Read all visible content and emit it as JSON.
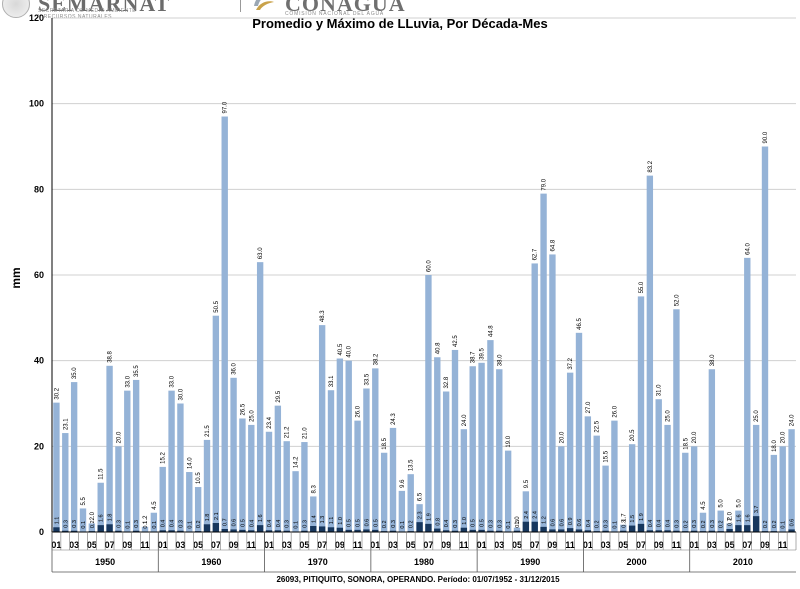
{
  "header": {
    "left_logo_text": "SEMARNAT",
    "left_logo_sub_1": "SECRETARÍA DE MEDIO AMBIENTE",
    "left_logo_sub_2": "Y RECURSOS NATURALES",
    "right_logo_text": "CONAGUA",
    "right_logo_sub": "COMISIÓN NACIONAL DEL AGUA"
  },
  "colors": {
    "max_bar": "#95b3d7",
    "avg_bar": "#17375e",
    "axis": "#000000"
  },
  "chart_data": {
    "type": "bar",
    "title": "Promedio y Máximo de LLuvia, Por Década-Mes",
    "ylabel": "mm",
    "ylim": [
      0,
      120
    ],
    "yticks": [
      0,
      20,
      40,
      60,
      80,
      100,
      120
    ],
    "footer": "26093, PITIQUITO, SONORA, OPERANDO. Período: 01/07/1952 - 31/12/2015",
    "decades": [
      "1950",
      "1960",
      "1970",
      "1980",
      "1990",
      "2000",
      "2010"
    ],
    "month_ticks": [
      "01",
      "03",
      "05",
      "07",
      "09",
      "11"
    ],
    "series": [
      {
        "name": "max",
        "values": [
          [
            30.2,
            23.1,
            35.0,
            5.5,
            2.0,
            11.5,
            38.8,
            20.0,
            33.0,
            35.5,
            1.2,
            4.5
          ],
          [
            15.2,
            33.0,
            30.0,
            14.0,
            10.5,
            21.5,
            50.5,
            97.0,
            36.0,
            26.5,
            25.0,
            63.0
          ],
          [
            23.4,
            29.5,
            21.2,
            14.2,
            21.0,
            8.3,
            48.3,
            33.1,
            40.5,
            40.0,
            26.0,
            33.5
          ],
          [
            38.2,
            18.5,
            24.3,
            9.6,
            13.5,
            6.5,
            60.0,
            40.8,
            32.8,
            42.5,
            24.0,
            38.7
          ],
          [
            39.5,
            44.8,
            38.0,
            19.0,
            1.0,
            9.5,
            62.7,
            79.0,
            64.8,
            20.0,
            37.2,
            46.5
          ],
          [
            27.0,
            22.5,
            15.5,
            26.0,
            1.7,
            20.5,
            55.0,
            83.2,
            31.0,
            25.0,
            52.0,
            18.5
          ],
          [
            20.0,
            4.5,
            38.0,
            5.0,
            2.0,
            5.0,
            64.0,
            25.0,
            90.0,
            18.0,
            20.0,
            24.0
          ]
        ],
        "labels": [
          [
            "30.2",
            "23.1",
            "35.0",
            "5.5",
            "2.0",
            "11.5",
            "38.8",
            "20.0",
            "33.0",
            "35.5",
            "1.2",
            "4.5"
          ],
          [
            "15.2",
            "33.0",
            "30.0",
            "14.0",
            "10.5",
            "21.5",
            "50.5",
            "97.0",
            "36.0",
            "26.5",
            "25.0",
            "63.0"
          ],
          [
            "23.4",
            "29.5",
            "21.2",
            "14.2",
            "21.0",
            "8.3",
            "48.3",
            "33.1",
            "40.5",
            "40.0",
            "26.0",
            "33.5"
          ],
          [
            "38.2",
            "18.5",
            "24.3",
            "9.6",
            "13.5",
            "6.5",
            "60.0",
            "40.8",
            "32.8",
            "42.5",
            "24.0",
            "38.7"
          ],
          [
            "39.5",
            "44.8",
            "38.0",
            "19.0",
            "1.0",
            "9.5",
            "62.7",
            "79.0",
            "64.8",
            "20.0",
            "37.2",
            "46.5"
          ],
          [
            "27.0",
            "22.5",
            "15.5",
            "26.0",
            "1.7",
            "20.5",
            "55.0",
            "83.2",
            "31.0",
            "25.0",
            "52.0",
            "18.5"
          ],
          [
            "20.0",
            "4.5",
            "38.0",
            "5.0",
            "2.0",
            "5.0",
            "64.0",
            "25.0",
            "90.0",
            "18.0",
            "20.0",
            "24.0"
          ]
        ]
      },
      {
        "name": "promedio",
        "values": [
          [
            1.1,
            0.3,
            0.3,
            0.1,
            0.2,
            1.6,
            1.8,
            0.3,
            0.1,
            0.3,
            0.1,
            0.1
          ],
          [
            0.4,
            0.4,
            0.3,
            0.1,
            0.2,
            1.8,
            2.1,
            0.7,
            0.6,
            0.5,
            0.4,
            1.6
          ],
          [
            0.4,
            0.4,
            0.3,
            0.1,
            0.3,
            1.4,
            1.3,
            1.1,
            1.0,
            0.5,
            0.5,
            0.6
          ],
          [
            0.5,
            0.2,
            0.3,
            0.1,
            0.2,
            2.3,
            1.9,
            0.8,
            0.4,
            0.3,
            1.0,
            0.5
          ],
          [
            0.5,
            0.3,
            0.3,
            0.1,
            0.3,
            2.4,
            2.4,
            1.2,
            0.6,
            0.6,
            0.9,
            0.6
          ],
          [
            0.4,
            0.2,
            0.3,
            0.1,
            0.3,
            1.5,
            1.9,
            0.4,
            0.4,
            0.4,
            0.3,
            0.2
          ],
          [
            0.3,
            0.2,
            0.3,
            0.2,
            0.7,
            1.6,
            1.6,
            3.7,
            0.2,
            0.2,
            0.1,
            0.6
          ]
        ],
        "labels": [
          [
            "1.1",
            "0.3",
            "0.3",
            "0.1",
            "0.2",
            "1.6",
            "1.8",
            "0.3",
            "0.1",
            "0.3",
            "0.1",
            "0.1"
          ],
          [
            "0.4",
            "0.4",
            "0.3",
            "0.1",
            "0.2",
            "1.8",
            "2.1",
            "0.7",
            "0.6",
            "0.5",
            "0.4",
            "1.6"
          ],
          [
            "0.4",
            "0.4",
            "0.3",
            "0.1",
            "0.3",
            "1.4",
            "1.3",
            "1.1",
            "1.0",
            "0.5",
            "0.5",
            "0.6"
          ],
          [
            "0.5",
            "0.2",
            "0.3",
            "0.1",
            "0.2",
            "2.3",
            "1.9",
            "0.8",
            "0.4",
            "0.3",
            "1.0",
            "0.5"
          ],
          [
            "0.5",
            "0.3",
            "0.3",
            "0.1",
            "0.3",
            "2.4",
            "2.4",
            "1.2",
            "0.6",
            "0.6",
            "0.9",
            "0.6"
          ],
          [
            "0.4",
            "0.2",
            "0.3",
            "0.1",
            "0.3",
            "1.5",
            "1.9",
            "0.4",
            "0.4",
            "0.4",
            "0.3",
            "0.2"
          ],
          [
            "0.3",
            "0.2",
            "0.3",
            "0.2",
            "0.7",
            "1.6",
            "1.6",
            "3.7",
            "0.2",
            "0.2",
            "0.1",
            "0.6"
          ]
        ]
      }
    ]
  }
}
